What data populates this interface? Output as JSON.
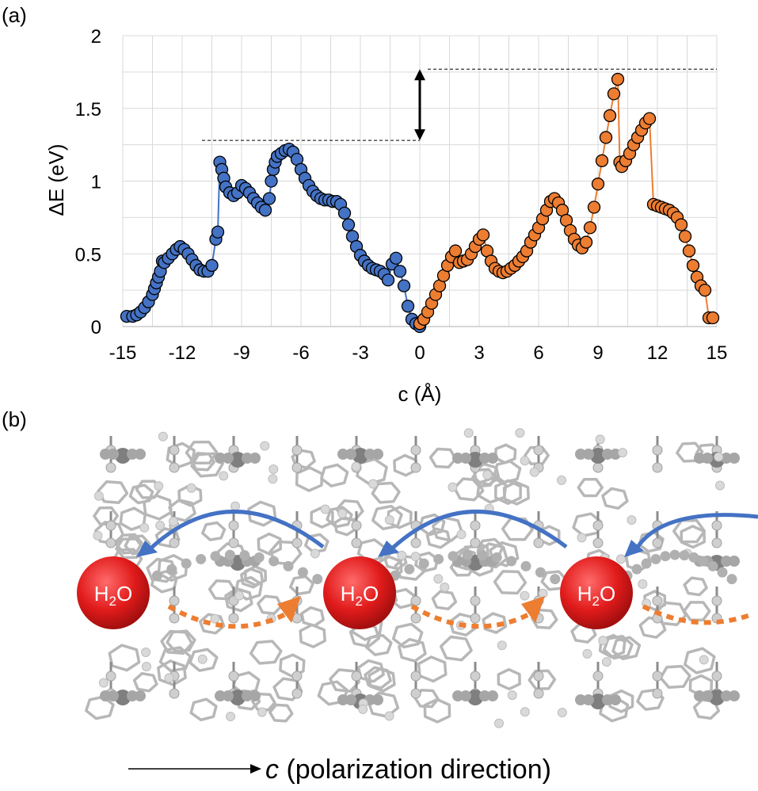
{
  "panel_a_label": "(a)",
  "panel_b_label": "(b)",
  "colors": {
    "blue_series": "#4472C4",
    "orange_series": "#ED7D31",
    "blue_arrow": "#4472C4",
    "orange_arrow": "#ED7D31",
    "h2o_ball": "#E11B1B",
    "gridline": "#D9D9D9",
    "lattice": "#B7B7B7"
  },
  "chart_data": {
    "type": "scatter",
    "xlabel": "c (Å)",
    "ylabel": "ΔE (eV)",
    "xlim": [
      -15,
      15
    ],
    "ylim": [
      0,
      2
    ],
    "x_ticks": [
      "-15",
      "-12",
      "-9",
      "-6",
      "-3",
      "0",
      "3",
      "6",
      "9",
      "12",
      "15"
    ],
    "y_ticks": [
      "0",
      "0.5",
      "1",
      "1.5",
      "2"
    ],
    "grid": true,
    "series": [
      {
        "color": "#4472C4",
        "x": [
          -14.8,
          -14.5,
          -14.3,
          -14.1,
          -13.9,
          -13.7,
          -13.5,
          -13.4,
          -13.3,
          -13.2,
          -13.1,
          -13.0,
          -12.9,
          -12.7,
          -12.5,
          -12.3,
          -12.1,
          -11.9,
          -11.7,
          -11.5,
          -11.3,
          -11.1,
          -10.9,
          -10.7,
          -10.5,
          -10.3,
          -10.2,
          -10.1,
          -10.0,
          -9.9,
          -9.8,
          -9.6,
          -9.4,
          -9.2,
          -9.0,
          -8.8,
          -8.6,
          -8.4,
          -8.2,
          -8.0,
          -7.8,
          -7.6,
          -7.5,
          -7.4,
          -7.3,
          -7.2,
          -7.0,
          -6.8,
          -6.6,
          -6.4,
          -6.2,
          -6.0,
          -5.8,
          -5.6,
          -5.4,
          -5.2,
          -5.0,
          -4.8,
          -4.6,
          -4.4,
          -4.2,
          -4.0,
          -3.8,
          -3.6,
          -3.4,
          -3.2,
          -3.0,
          -2.8,
          -2.6,
          -2.4,
          -2.2,
          -2.0,
          -1.8,
          -1.6,
          -1.4,
          -1.2,
          -1.0,
          -0.8,
          -0.6,
          -0.4,
          -0.2,
          0.0
        ],
        "y": [
          0.07,
          0.07,
          0.08,
          0.1,
          0.13,
          0.17,
          0.22,
          0.26,
          0.3,
          0.34,
          0.38,
          0.45,
          0.44,
          0.47,
          0.5,
          0.53,
          0.55,
          0.53,
          0.5,
          0.46,
          0.42,
          0.39,
          0.38,
          0.38,
          0.42,
          0.6,
          0.65,
          1.13,
          1.08,
          1.02,
          0.96,
          0.92,
          0.9,
          0.92,
          0.97,
          0.95,
          0.92,
          0.88,
          0.85,
          0.82,
          0.8,
          0.88,
          1.0,
          1.08,
          1.13,
          1.17,
          1.19,
          1.21,
          1.22,
          1.2,
          1.15,
          1.08,
          1.02,
          0.97,
          0.93,
          0.9,
          0.88,
          0.87,
          0.87,
          0.86,
          0.86,
          0.84,
          0.78,
          0.7,
          0.62,
          0.55,
          0.49,
          0.45,
          0.42,
          0.4,
          0.39,
          0.38,
          0.36,
          0.32,
          0.43,
          0.47,
          0.38,
          0.28,
          0.14,
          0.05,
          0.02,
          0.0
        ]
      },
      {
        "color": "#ED7D31",
        "x": [
          0.0,
          0.2,
          0.4,
          0.6,
          0.8,
          1.0,
          1.2,
          1.4,
          1.6,
          1.8,
          2.0,
          2.2,
          2.4,
          2.6,
          2.8,
          3.0,
          3.2,
          3.4,
          3.6,
          3.8,
          4.0,
          4.2,
          4.4,
          4.6,
          4.8,
          5.0,
          5.2,
          5.4,
          5.6,
          5.8,
          6.0,
          6.2,
          6.4,
          6.6,
          6.8,
          7.0,
          7.2,
          7.4,
          7.6,
          7.8,
          8.0,
          8.2,
          8.4,
          8.6,
          8.8,
          9.0,
          9.2,
          9.4,
          9.6,
          9.8,
          10.0,
          10.1,
          10.2,
          10.4,
          10.6,
          10.8,
          11.0,
          11.2,
          11.4,
          11.6,
          11.8,
          12.0,
          12.2,
          12.4,
          12.6,
          12.8,
          13.0,
          13.2,
          13.4,
          13.6,
          13.8,
          14.0,
          14.2,
          14.4,
          14.6,
          14.8
        ],
        "y": [
          0.02,
          0.05,
          0.1,
          0.16,
          0.22,
          0.28,
          0.35,
          0.42,
          0.48,
          0.52,
          0.44,
          0.45,
          0.46,
          0.5,
          0.55,
          0.6,
          0.63,
          0.52,
          0.45,
          0.4,
          0.38,
          0.37,
          0.38,
          0.4,
          0.42,
          0.45,
          0.48,
          0.52,
          0.58,
          0.63,
          0.68,
          0.74,
          0.8,
          0.86,
          0.88,
          0.85,
          0.8,
          0.73,
          0.66,
          0.6,
          0.56,
          0.54,
          0.58,
          0.68,
          0.82,
          0.98,
          1.14,
          1.3,
          1.45,
          1.6,
          1.7,
          1.13,
          1.1,
          1.14,
          1.19,
          1.25,
          1.3,
          1.35,
          1.4,
          1.43,
          0.84,
          0.83,
          0.82,
          0.81,
          0.8,
          0.78,
          0.75,
          0.7,
          0.62,
          0.52,
          0.42,
          0.34,
          0.28,
          0.25,
          0.06,
          0.06
        ]
      }
    ]
  },
  "h2o": {
    "label_h": "H",
    "label_sub": "2",
    "label_o": "O"
  },
  "direction": {
    "c_label": "c",
    "text": " (polarization direction)"
  }
}
